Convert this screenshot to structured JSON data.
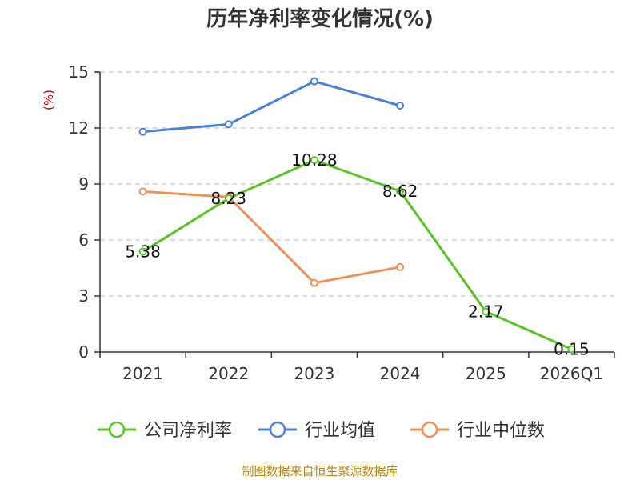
{
  "title": "历年净利率变化情况(%)",
  "source": "制图数据来自恒生聚源数据库",
  "chart_data": {
    "type": "line",
    "title": "历年净利率变化情况(%)",
    "ylabel": "(%)",
    "categories": [
      "2021",
      "2022",
      "2023",
      "2024",
      "2025",
      "2026Q1"
    ],
    "ylim": [
      0,
      15
    ],
    "yticks": [
      0,
      3,
      6,
      9,
      12,
      15
    ],
    "grid": true,
    "legend_position": "bottom",
    "series": [
      {
        "name": "公司净利率",
        "color": "#5cc227",
        "values": [
          5.38,
          8.23,
          10.28,
          8.62,
          2.17,
          0.15
        ],
        "labels": [
          "5.38",
          "8.23",
          "10.28",
          "8.62",
          "2.17",
          "0.15"
        ]
      },
      {
        "name": "行业均值",
        "color": "#4f80d9",
        "values": [
          11.8,
          12.2,
          14.5,
          13.2,
          null,
          null
        ]
      },
      {
        "name": "行业中位数",
        "color": "#f0905a",
        "values": [
          8.6,
          8.3,
          3.7,
          4.55,
          null,
          null
        ]
      }
    ]
  }
}
